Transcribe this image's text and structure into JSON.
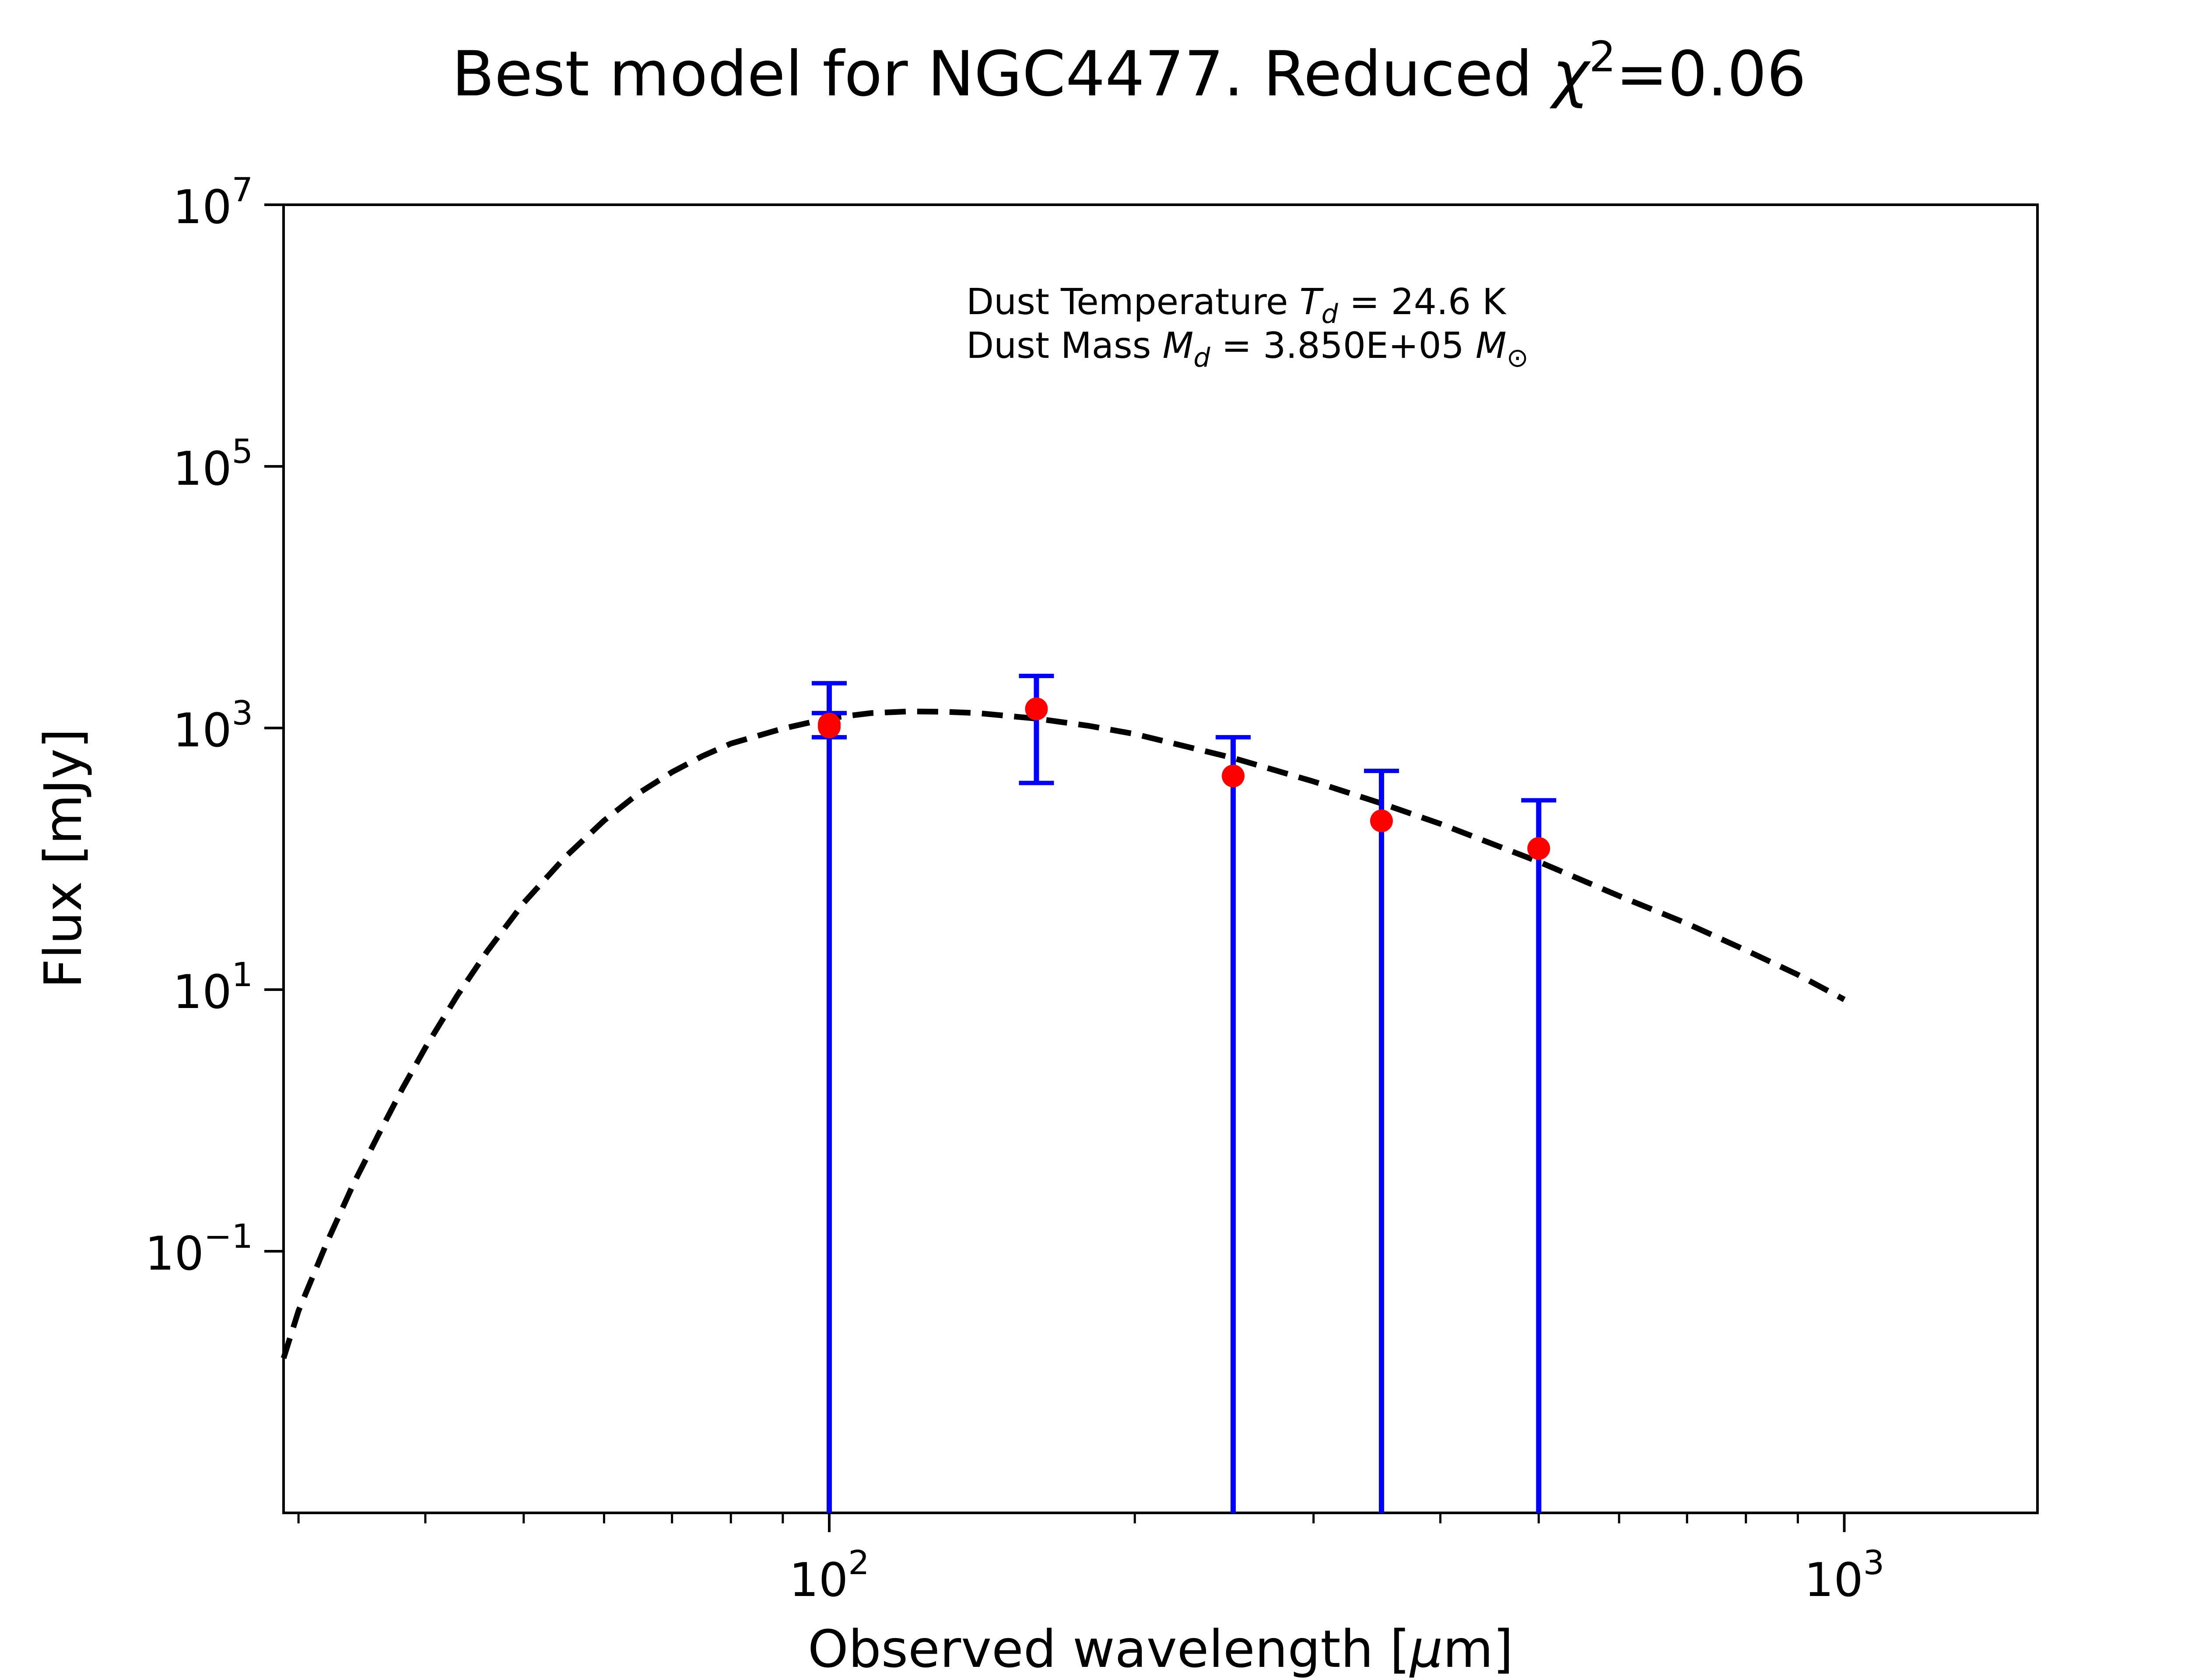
{
  "chart_data": {
    "type": "scatter",
    "title_parts": {
      "main": "Best model for NGC4477. Reduced ",
      "chi": "χ",
      "sup": "2",
      "value": "=0.06"
    },
    "xlabel_parts": {
      "pre": "Observed wavelength [",
      "mu": "μ",
      "post": "m]"
    },
    "ylabel": "Flux [mJy]",
    "x_scale": "log",
    "y_scale": "log",
    "xlim": [
      29,
      1550
    ],
    "ylim": [
      0.001,
      10000000
    ],
    "grid": false,
    "x_ticks": [
      {
        "value": 100,
        "base": "10",
        "exp": "2"
      },
      {
        "value": 1000,
        "base": "10",
        "exp": "3"
      }
    ],
    "y_ticks": [
      {
        "value": 0.1,
        "base": "10",
        "exp": "−1"
      },
      {
        "value": 10,
        "base": "10",
        "exp": "1"
      },
      {
        "value": 1000,
        "base": "10",
        "exp": "3"
      },
      {
        "value": 100000,
        "base": "10",
        "exp": "5"
      },
      {
        "value": 10000000,
        "base": "10",
        "exp": "7"
      }
    ],
    "annotation": {
      "line1": {
        "pre": "Dust Temperature ",
        "sym": "T",
        "sub": "d",
        "post": " = 24.6 K"
      },
      "line2": {
        "pre": "Dust Mass ",
        "sym": "M",
        "sub": "d",
        "mid": " = 3.850E+05 ",
        "sym2": "M",
        "sub2": "⊙"
      }
    },
    "model_curve": {
      "style": "dashed",
      "color": "#000000",
      "points": [
        [
          29,
          0.0152
        ],
        [
          30,
          0.0351
        ],
        [
          32,
          0.117
        ],
        [
          34,
          0.33
        ],
        [
          36,
          0.79
        ],
        [
          38,
          1.77
        ],
        [
          40,
          3.6
        ],
        [
          43,
          9.0
        ],
        [
          46,
          19.5
        ],
        [
          50,
          46
        ],
        [
          55,
          104
        ],
        [
          60,
          196
        ],
        [
          65,
          320
        ],
        [
          70,
          460
        ],
        [
          75,
          610
        ],
        [
          80,
          760
        ],
        [
          90,
          990
        ],
        [
          100,
          1190
        ],
        [
          110,
          1300
        ],
        [
          120,
          1340
        ],
        [
          130,
          1330
        ],
        [
          140,
          1300
        ],
        [
          160,
          1180
        ],
        [
          180,
          1040
        ],
        [
          200,
          900
        ],
        [
          250,
          590
        ],
        [
          300,
          390
        ],
        [
          350,
          265
        ],
        [
          400,
          185
        ],
        [
          500,
          95
        ],
        [
          600,
          52
        ],
        [
          700,
          32
        ],
        [
          800,
          20
        ],
        [
          900,
          13
        ],
        [
          1000,
          8.4
        ]
      ]
    },
    "observations": {
      "marker_color": "#ff0000",
      "error_color": "#0000ff",
      "points": [
        {
          "x": 100,
          "y": 1020,
          "ylow": 0.001,
          "yhigh": 2200
        },
        {
          "x": 100,
          "y": 1070,
          "ylow": 850,
          "yhigh": 1300
        },
        {
          "x": 160,
          "y": 1400,
          "ylow": 380,
          "yhigh": 2500
        },
        {
          "x": 250,
          "y": 430,
          "ylow": 0.001,
          "yhigh": 850
        },
        {
          "x": 350,
          "y": 195,
          "ylow": 0.001,
          "yhigh": 470
        },
        {
          "x": 500,
          "y": 120,
          "ylow": 0.001,
          "yhigh": 280
        }
      ]
    }
  }
}
